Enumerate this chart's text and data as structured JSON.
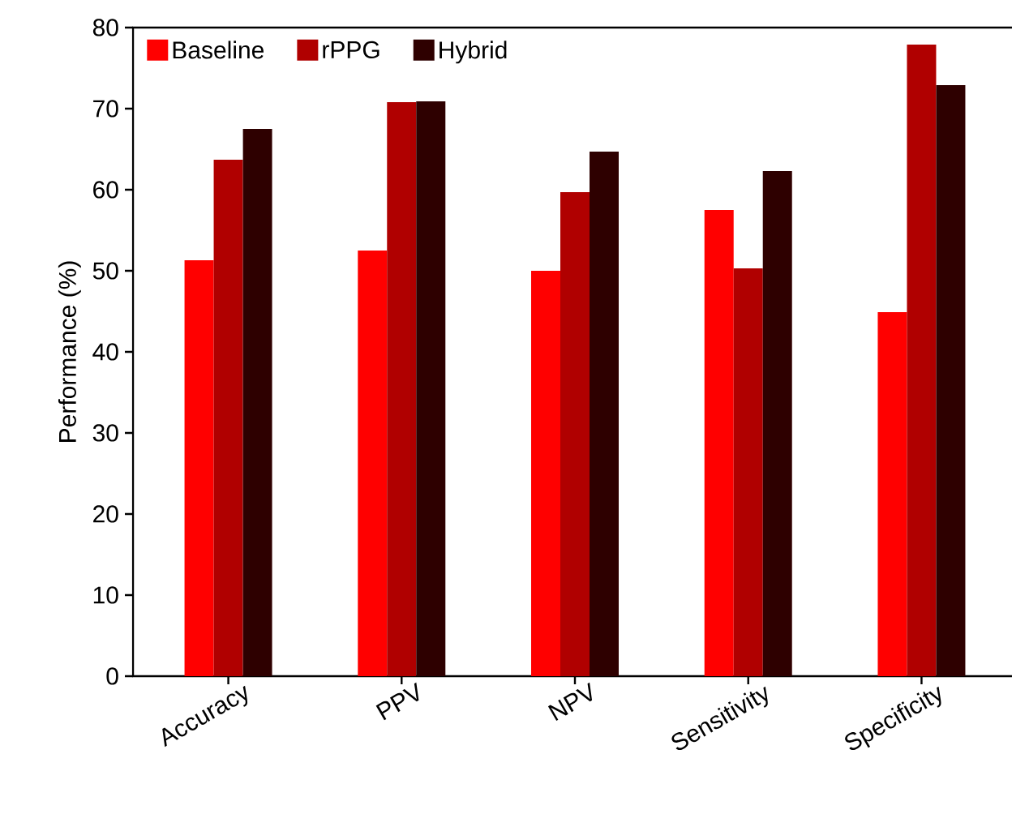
{
  "chart_data": {
    "type": "bar",
    "ylabel": "Performance (%)",
    "categories": [
      "Accuracy",
      "PPV",
      "NPV",
      "Sensitivity",
      "Specificity"
    ],
    "series": [
      {
        "name": "Baseline",
        "color": "#ff0000",
        "values": [
          51.3,
          52.5,
          50.0,
          57.5,
          44.9
        ]
      },
      {
        "name": "rPPG",
        "color": "#b00000",
        "values": [
          63.7,
          70.8,
          59.7,
          50.3,
          77.9
        ]
      },
      {
        "name": "Hybrid",
        "color": "#2e0000",
        "values": [
          67.5,
          70.9,
          64.7,
          62.3,
          72.9
        ]
      }
    ],
    "ylim": [
      0,
      80
    ],
    "yticks": [
      0,
      10,
      20,
      30,
      40,
      50,
      60,
      70,
      80
    ],
    "legend": "top left",
    "grid": false
  }
}
